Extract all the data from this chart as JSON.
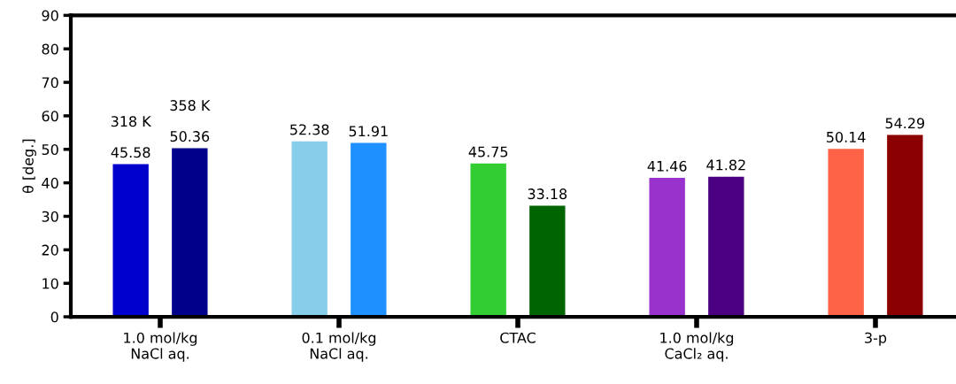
{
  "chart_data": {
    "type": "bar",
    "ylabel": "θ [deg.]",
    "categories": [
      "1.0 mol/kg\nNaCl aq.",
      "0.1 mol/kg\nNaCl aq.",
      "CTAC",
      "1.0 mol/kg\nCaCl₂ aq.",
      "3-p"
    ],
    "series": [
      {
        "colors": [
          "#0000cd",
          "#87ceeb",
          "#32cd32",
          "#9932cc",
          "#ff6347"
        ],
        "values": [
          45.58,
          52.38,
          45.75,
          41.46,
          50.14
        ]
      },
      {
        "colors": [
          "#00008b",
          "#1e90ff",
          "#006400",
          "#4b0082",
          "#8b0000"
        ],
        "values": [
          50.36,
          51.91,
          33.18,
          41.82,
          54.29
        ]
      }
    ],
    "annotations": [
      "318 K",
      "358 K"
    ],
    "data_labels": true,
    "ylim": [
      0,
      90
    ],
    "yticks": [
      0,
      10,
      20,
      30,
      40,
      50,
      60,
      70,
      80,
      90
    ],
    "grid": false
  }
}
